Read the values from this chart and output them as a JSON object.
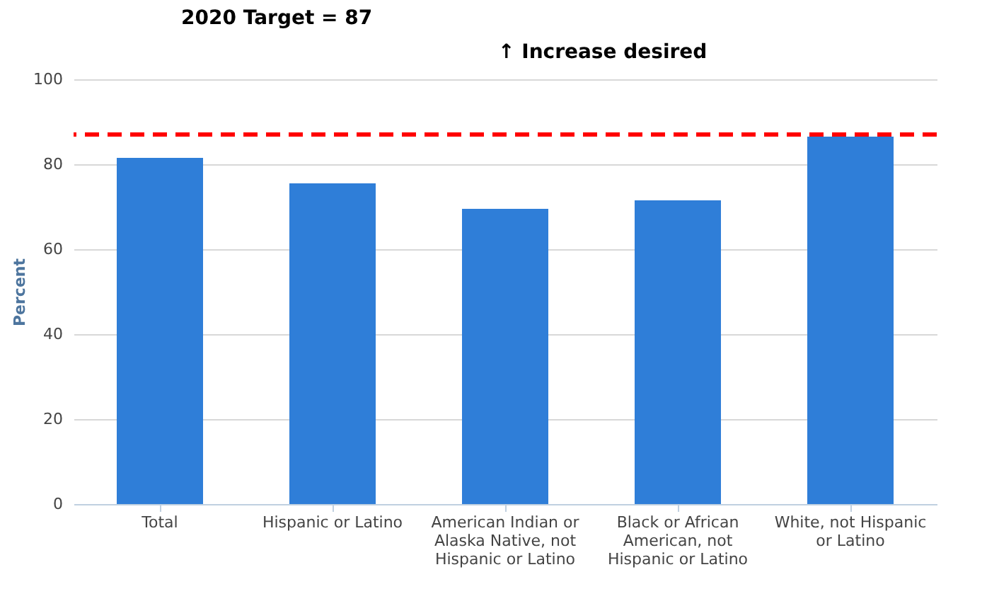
{
  "chart_data": {
    "type": "bar",
    "title": "2020 Target = 87",
    "annotations": [
      "↑ Increase desired"
    ],
    "categories": [
      "Total",
      "Hispanic or Latino",
      "American Indian or Alaska Native, not Hispanic or Latino",
      "Black or African American, not Hispanic or Latino",
      "White, not Hispanic or Latino"
    ],
    "values": [
      81.5,
      75.5,
      69.5,
      71.5,
      86.5
    ],
    "color": "#2f7ed8",
    "ylabel": "Percent",
    "ylim": [
      0,
      100
    ],
    "yticks": [
      0,
      20,
      40,
      60,
      80,
      100
    ],
    "grid": "y",
    "ref_lines": [
      {
        "axis": "y",
        "value": 87,
        "color": "#ff0000",
        "line_style": "dashed"
      }
    ]
  }
}
